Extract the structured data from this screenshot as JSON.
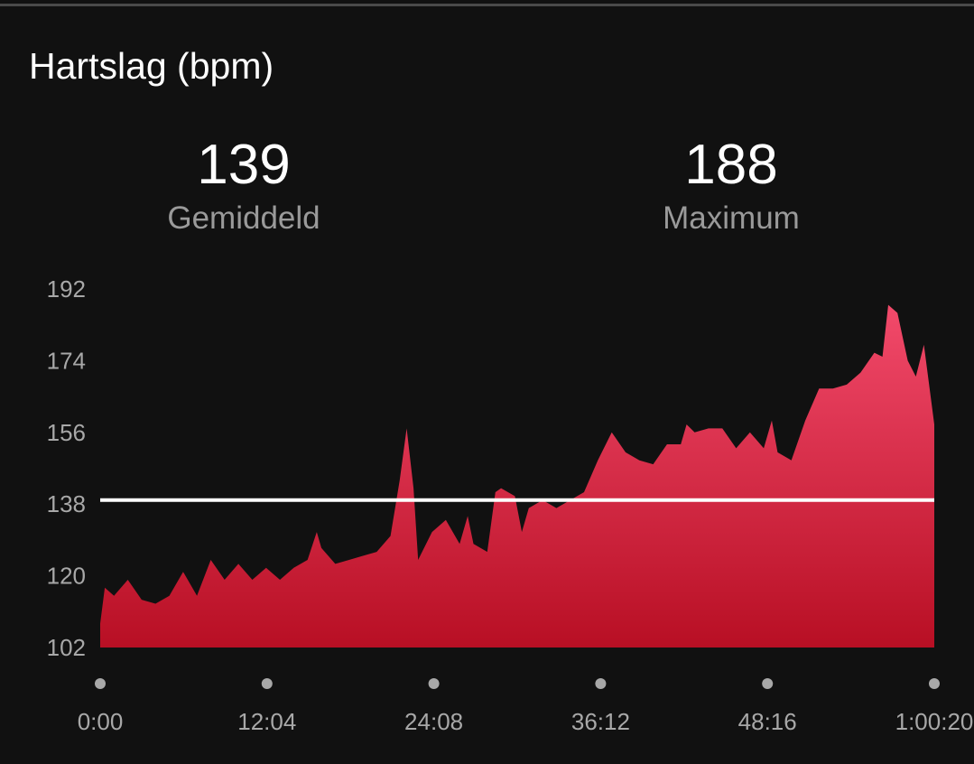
{
  "header": {
    "title": "Hartslag (bpm)"
  },
  "stats": [
    {
      "value": "139",
      "label": "Gemiddeld"
    },
    {
      "value": "188",
      "label": "Maximum"
    }
  ],
  "colors": {
    "fill_top": "#f24a6b",
    "fill_bottom": "#b80f24",
    "average_line": "#ffffff",
    "background": "#111111"
  },
  "chart_data": {
    "type": "area",
    "title": "Hartslag (bpm)",
    "ylim": [
      102,
      192
    ],
    "yticks": [
      "192",
      "174",
      "156",
      "138",
      "120",
      "102"
    ],
    "xticks": [
      "0:00",
      "12:04",
      "24:08",
      "36:12",
      "48:16",
      "1:00:20"
    ],
    "average": 139,
    "grid": false,
    "series": [
      {
        "x": [
          "0:00",
          "0:20",
          "1:00",
          "2:00",
          "3:00",
          "4:00",
          "5:00",
          "6:00",
          "7:00",
          "8:00",
          "9:00",
          "10:00",
          "11:00",
          "12:00",
          "13:00",
          "14:00",
          "15:00",
          "15:40",
          "16:00",
          "17:00",
          "18:00",
          "19:00",
          "20:00",
          "21:00",
          "21:40",
          "22:10",
          "22:40",
          "23:00",
          "24:00",
          "25:00",
          "26:00",
          "26:35",
          "27:00",
          "28:00",
          "28:35",
          "29:00",
          "30:00",
          "30:30",
          "31:00",
          "32:00",
          "33:00",
          "34:00",
          "35:00",
          "36:00",
          "37:00",
          "38:00",
          "39:00",
          "40:00",
          "41:00",
          "42:00",
          "42:25",
          "43:00",
          "44:00",
          "45:00",
          "46:00",
          "47:00",
          "48:00",
          "48:35",
          "49:00",
          "50:00",
          "51:00",
          "52:00",
          "53:00",
          "54:00",
          "55:00",
          "56:00",
          "56:35",
          "57:00",
          "57:40",
          "58:25",
          "59:00",
          "59:35",
          "1:00:20"
        ],
        "y": [
          108,
          117,
          115,
          119,
          114,
          113,
          115,
          121,
          115,
          124,
          119,
          123,
          119,
          122,
          119,
          122,
          124,
          131,
          127,
          123,
          124,
          125,
          126,
          130,
          144,
          157,
          142,
          124,
          131,
          134,
          128,
          135,
          128,
          126,
          141,
          142,
          140,
          131,
          137,
          139,
          137,
          139,
          141,
          149,
          156,
          151,
          149,
          148,
          153,
          153,
          158,
          156,
          157,
          157,
          152,
          156,
          152,
          159,
          151,
          149,
          159,
          167,
          167,
          168,
          171,
          176,
          175,
          188,
          186,
          174,
          170,
          178,
          158
        ]
      }
    ]
  }
}
